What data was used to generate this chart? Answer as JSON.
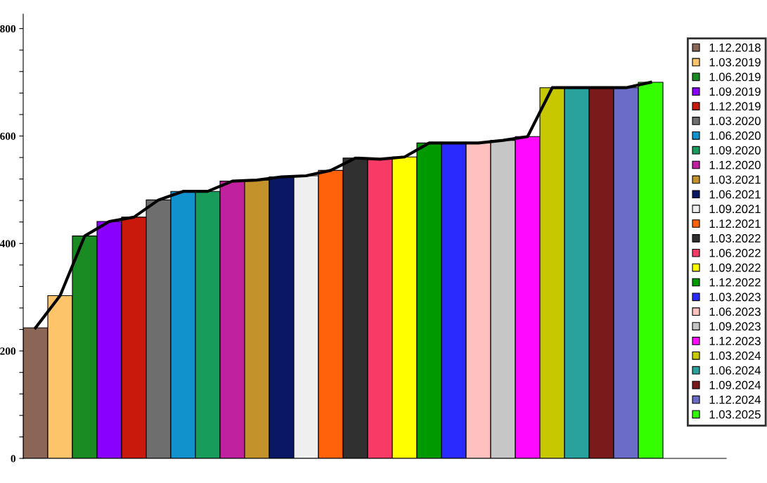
{
  "chart_data": {
    "type": "bar",
    "categories": [
      null,
      null,
      null,
      null,
      null,
      null,
      null,
      null,
      null,
      null,
      null,
      null,
      null,
      null,
      null,
      null,
      null,
      null,
      null,
      null,
      null,
      null,
      null,
      null,
      null,
      null
    ],
    "ylim": [
      0,
      827
    ],
    "yticks": [
      0,
      {
        "value": 40,
        "label": null
      },
      {
        "value": 80,
        "label": null
      },
      {
        "value": 120,
        "label": null
      },
      {
        "value": 160,
        "label": null
      },
      200,
      {
        "value": 240,
        "label": null
      },
      {
        "value": 280,
        "label": null
      },
      {
        "value": 320,
        "label": null
      },
      {
        "value": 360,
        "label": null
      },
      400,
      {
        "value": 440,
        "label": null
      },
      {
        "value": 480,
        "label": null
      },
      {
        "value": 520,
        "label": null
      },
      {
        "value": 560,
        "label": null
      },
      600,
      {
        "value": 640,
        "label": null
      },
      {
        "value": 680,
        "label": null
      },
      {
        "value": 720,
        "label": null
      },
      {
        "value": 760,
        "label": null
      },
      800
    ],
    "grid": false,
    "legend": "right",
    "tick_labels": "y",
    "series": [
      {
        "name": "1.12.2018",
        "color": "#8b6656",
        "values": [
          243,
          null,
          null,
          null,
          null,
          null,
          null,
          null,
          null,
          null,
          null,
          null,
          null,
          null,
          null,
          null,
          null,
          null,
          null,
          null,
          null,
          null,
          null,
          null,
          null,
          null
        ]
      },
      {
        "name": "1.03.2019",
        "color": "#fdc46a",
        "values": [
          null,
          303,
          null,
          null,
          null,
          null,
          null,
          null,
          null,
          null,
          null,
          null,
          null,
          null,
          null,
          null,
          null,
          null,
          null,
          null,
          null,
          null,
          null,
          null,
          null,
          null
        ]
      },
      {
        "name": "1.06.2019",
        "color": "#1a8a22",
        "values": [
          null,
          null,
          414,
          null,
          null,
          null,
          null,
          null,
          null,
          null,
          null,
          null,
          null,
          null,
          null,
          null,
          null,
          null,
          null,
          null,
          null,
          null,
          null,
          null,
          null,
          null
        ]
      },
      {
        "name": "1.09.2019",
        "color": "#8a00ff",
        "values": [
          null,
          null,
          null,
          441,
          null,
          null,
          null,
          null,
          null,
          null,
          null,
          null,
          null,
          null,
          null,
          null,
          null,
          null,
          null,
          null,
          null,
          null,
          null,
          null,
          null,
          null
        ]
      },
      {
        "name": "1.12.2019",
        "color": "#c8190c",
        "values": [
          null,
          null,
          null,
          null,
          449,
          null,
          null,
          null,
          null,
          null,
          null,
          null,
          null,
          null,
          null,
          null,
          null,
          null,
          null,
          null,
          null,
          null,
          null,
          null,
          null,
          null
        ]
      },
      {
        "name": "1.03.2020",
        "color": "#6e6e6e",
        "values": [
          null,
          null,
          null,
          null,
          null,
          481,
          null,
          null,
          null,
          null,
          null,
          null,
          null,
          null,
          null,
          null,
          null,
          null,
          null,
          null,
          null,
          null,
          null,
          null,
          null,
          null
        ]
      },
      {
        "name": "1.06.2020",
        "color": "#1292cc",
        "values": [
          null,
          null,
          null,
          null,
          null,
          null,
          497,
          null,
          null,
          null,
          null,
          null,
          null,
          null,
          null,
          null,
          null,
          null,
          null,
          null,
          null,
          null,
          null,
          null,
          null,
          null
        ]
      },
      {
        "name": "1.09.2020",
        "color": "#179c5c",
        "values": [
          null,
          null,
          null,
          null,
          null,
          null,
          null,
          497,
          null,
          null,
          null,
          null,
          null,
          null,
          null,
          null,
          null,
          null,
          null,
          null,
          null,
          null,
          null,
          null,
          null,
          null
        ]
      },
      {
        "name": "1.12.2020",
        "color": "#bf219f",
        "values": [
          null,
          null,
          null,
          null,
          null,
          null,
          null,
          null,
          516,
          null,
          null,
          null,
          null,
          null,
          null,
          null,
          null,
          null,
          null,
          null,
          null,
          null,
          null,
          null,
          null,
          null
        ]
      },
      {
        "name": "1.03.2021",
        "color": "#c4922a",
        "values": [
          null,
          null,
          null,
          null,
          null,
          null,
          null,
          null,
          null,
          518,
          null,
          null,
          null,
          null,
          null,
          null,
          null,
          null,
          null,
          null,
          null,
          null,
          null,
          null,
          null,
          null
        ]
      },
      {
        "name": "1.06.2021",
        "color": "#0a1864",
        "values": [
          null,
          null,
          null,
          null,
          null,
          null,
          null,
          null,
          null,
          null,
          524,
          null,
          null,
          null,
          null,
          null,
          null,
          null,
          null,
          null,
          null,
          null,
          null,
          null,
          null,
          null
        ]
      },
      {
        "name": "1.09.2021",
        "color": "#efefef",
        "values": [
          null,
          null,
          null,
          null,
          null,
          null,
          null,
          null,
          null,
          null,
          null,
          526,
          null,
          null,
          null,
          null,
          null,
          null,
          null,
          null,
          null,
          null,
          null,
          null,
          null,
          null
        ]
      },
      {
        "name": "1.12.2021",
        "color": "#ff620a",
        "values": [
          null,
          null,
          null,
          null,
          null,
          null,
          null,
          null,
          null,
          null,
          null,
          null,
          536,
          null,
          null,
          null,
          null,
          null,
          null,
          null,
          null,
          null,
          null,
          null,
          null,
          null
        ]
      },
      {
        "name": "1.03.2022",
        "color": "#303030",
        "values": [
          null,
          null,
          null,
          null,
          null,
          null,
          null,
          null,
          null,
          null,
          null,
          null,
          null,
          559,
          null,
          null,
          null,
          null,
          null,
          null,
          null,
          null,
          null,
          null,
          null,
          null
        ]
      },
      {
        "name": "1.06.2022",
        "color": "#f73a66",
        "values": [
          null,
          null,
          null,
          null,
          null,
          null,
          null,
          null,
          null,
          null,
          null,
          null,
          null,
          null,
          557,
          null,
          null,
          null,
          null,
          null,
          null,
          null,
          null,
          null,
          null,
          null
        ]
      },
      {
        "name": "1.09.2022",
        "color": "#ffff00",
        "values": [
          null,
          null,
          null,
          null,
          null,
          null,
          null,
          null,
          null,
          null,
          null,
          null,
          null,
          null,
          null,
          561,
          null,
          null,
          null,
          null,
          null,
          null,
          null,
          null,
          null,
          null
        ]
      },
      {
        "name": "1.12.2022",
        "color": "#009900",
        "values": [
          null,
          null,
          null,
          null,
          null,
          null,
          null,
          null,
          null,
          null,
          null,
          null,
          null,
          null,
          null,
          null,
          587,
          null,
          null,
          null,
          null,
          null,
          null,
          null,
          null,
          null
        ]
      },
      {
        "name": "1.03.2023",
        "color": "#2a2aff",
        "values": [
          null,
          null,
          null,
          null,
          null,
          null,
          null,
          null,
          null,
          null,
          null,
          null,
          null,
          null,
          null,
          null,
          null,
          587,
          null,
          null,
          null,
          null,
          null,
          null,
          null,
          null
        ]
      },
      {
        "name": "1.06.2023",
        "color": "#ffc0c0",
        "values": [
          null,
          null,
          null,
          null,
          null,
          null,
          null,
          null,
          null,
          null,
          null,
          null,
          null,
          null,
          null,
          null,
          null,
          null,
          587,
          null,
          null,
          null,
          null,
          null,
          null,
          null
        ]
      },
      {
        "name": "1.09.2023",
        "color": "#c6c6c6",
        "values": [
          null,
          null,
          null,
          null,
          null,
          null,
          null,
          null,
          null,
          null,
          null,
          null,
          null,
          null,
          null,
          null,
          null,
          null,
          null,
          592,
          null,
          null,
          null,
          null,
          null,
          null
        ]
      },
      {
        "name": "1.12.2023",
        "color": "#ff0aff",
        "values": [
          null,
          null,
          null,
          null,
          null,
          null,
          null,
          null,
          null,
          null,
          null,
          null,
          null,
          null,
          null,
          null,
          null,
          null,
          null,
          null,
          599,
          null,
          null,
          null,
          null,
          null
        ]
      },
      {
        "name": "1.03.2024",
        "color": "#c8c800",
        "values": [
          null,
          null,
          null,
          null,
          null,
          null,
          null,
          null,
          null,
          null,
          null,
          null,
          null,
          null,
          null,
          null,
          null,
          null,
          null,
          null,
          null,
          690,
          null,
          null,
          null,
          null
        ]
      },
      {
        "name": "1.06.2024",
        "color": "#29a29e",
        "values": [
          null,
          null,
          null,
          null,
          null,
          null,
          null,
          null,
          null,
          null,
          null,
          null,
          null,
          null,
          null,
          null,
          null,
          null,
          null,
          null,
          null,
          null,
          690,
          null,
          null,
          null
        ]
      },
      {
        "name": "1.09.2024",
        "color": "#7a1a1a",
        "values": [
          null,
          null,
          null,
          null,
          null,
          null,
          null,
          null,
          null,
          null,
          null,
          null,
          null,
          null,
          null,
          null,
          null,
          null,
          null,
          null,
          null,
          null,
          null,
          690,
          null,
          null
        ]
      },
      {
        "name": "1.12.2024",
        "color": "#6b6bc8",
        "values": [
          null,
          null,
          null,
          null,
          null,
          null,
          null,
          null,
          null,
          null,
          null,
          null,
          null,
          null,
          null,
          null,
          null,
          null,
          null,
          null,
          null,
          null,
          null,
          null,
          690,
          null
        ]
      },
      {
        "name": "1.03.2025",
        "color": "#33ff00",
        "values": [
          null,
          null,
          null,
          null,
          null,
          null,
          null,
          null,
          null,
          null,
          null,
          null,
          null,
          null,
          null,
          null,
          null,
          null,
          null,
          null,
          null,
          null,
          null,
          null,
          null,
          700
        ]
      },
      {
        "type": "line",
        "color": "#000000",
        "values": [
          243,
          303,
          414,
          441,
          449,
          481,
          497,
          497,
          516,
          518,
          524,
          526,
          536,
          559,
          557,
          561,
          587,
          587,
          587,
          592,
          599,
          690,
          690,
          690,
          690,
          700
        ]
      }
    ]
  }
}
